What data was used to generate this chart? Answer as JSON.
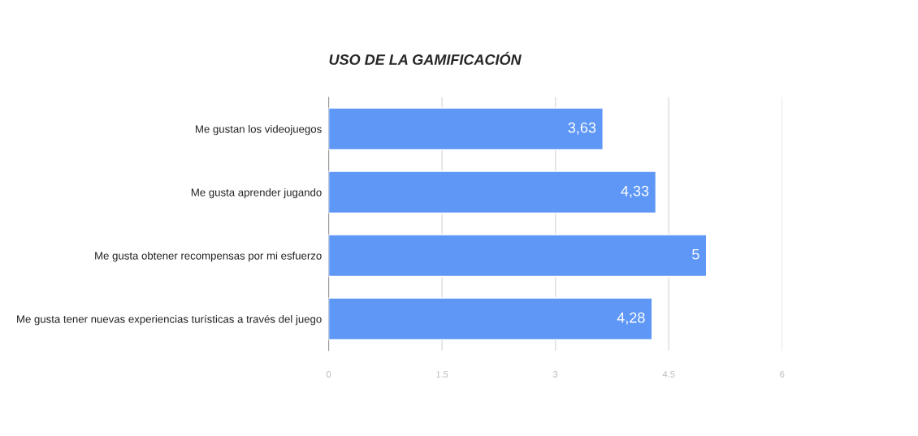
{
  "chart_data": {
    "type": "bar",
    "orientation": "horizontal",
    "title": "USO DE LA GAMIFICACIÓN",
    "categories": [
      "Me gustan los videojuegos",
      "Me gusta aprender jugando",
      "Me gusta obtener recompensas por mi esfuerzo",
      "Me gusta tener nuevas experiencias turísticas a través del juego"
    ],
    "values": [
      3.63,
      4.33,
      5,
      4.28
    ],
    "value_labels": [
      "3,63",
      "4,33",
      "5",
      "4,28"
    ],
    "color": "#5e97f6",
    "xlim": [
      0,
      6
    ],
    "xticks": [
      0,
      1.5,
      3,
      4.5,
      6
    ],
    "grid": "x",
    "legend": false
  }
}
